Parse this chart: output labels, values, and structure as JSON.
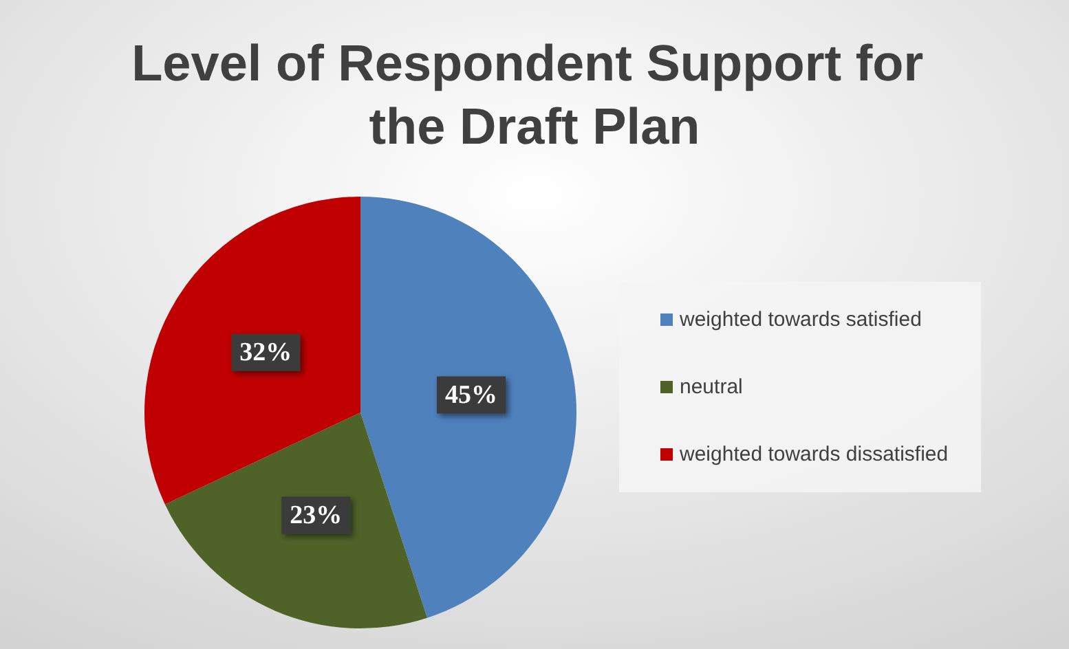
{
  "chart_data": {
    "type": "pie",
    "title": "Level of Respondent Support for the Draft Plan",
    "categories": [
      "weighted towards satisfied",
      "neutral",
      "weighted towards dissatisfied"
    ],
    "values": [
      45,
      23,
      32
    ],
    "colors": [
      "#4f81bd",
      "#4f6228",
      "#c00000"
    ],
    "value_labels": [
      "45%",
      "23%",
      "32%"
    ],
    "legend": "right"
  }
}
